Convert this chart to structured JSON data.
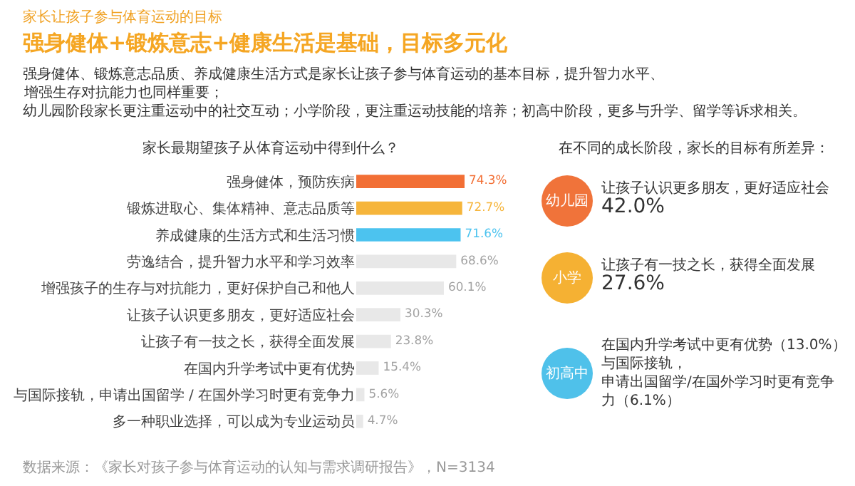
{
  "chart_data": [
    {
      "type": "other",
      "subtitle": "家长让孩子参与体育运动的目标",
      "title": "强身健体+锻炼意志+健康生活是基础，目标多元化",
      "annotations": [
        "强身健体、锻炼意志品质、养成健康生活方式是家长让孩子参与体育运动的基本目标，提升智力水平、增强生存对抗能力也同样重要；",
        "幼儿园阶段家长更注重运动中的社交互动；小学阶段，更注重运动技能的培养；初高中阶段，更多与升学、留学等诉求相关。"
      ]
    },
    {
      "type": "bar",
      "orientation": "horizontal",
      "title": "家长最期望孩子从体育运动中得到什么？",
      "categories": [
        "强身健体，预防疾病",
        "锻炼进取心、集体精神、意志品质等",
        "养成健康的生活方式和生活习惯",
        "劳逸结合，提升智力水平和学习效率",
        "增强孩子的生存与对抗能力，更好保护自己和他人",
        "让孩子认识更多朋友，更好适应社会",
        "让孩子有一技之长，获得全面发展",
        "在国内升学考试中更有优势",
        "与国际接轨，申请出国留学 / 在国外学习时更有竞争力",
        "多一种职业选择，可以成为专业运动员"
      ],
      "values": [
        74.3,
        72.7,
        71.6,
        68.6,
        60.1,
        30.3,
        23.8,
        15.4,
        5.6,
        4.7
      ],
      "value_labels": [
        "74.3%",
        "72.7%",
        "71.6%",
        "68.6%",
        "60.1%",
        "30.3%",
        "23.8%",
        "15.4%",
        "5.6%",
        "4.7%"
      ],
      "colors": [
        "#f26f35",
        "#f6b53b",
        "#4cc3ef",
        "#e8e8e8",
        "#e8e8e8",
        "#e8e8e8",
        "#e8e8e8",
        "#e8e8e8",
        "#e8e8e8",
        "#e8e8e8"
      ],
      "tick_labels": "y",
      "annotations": [
        "数据来源：《家长对孩子参与体育运动的认知与需求调研报告》，N=3134"
      ]
    },
    {
      "type": "other",
      "title": "在不同的成长阶段，家长的目标有所差异：",
      "categories": [
        "幼儿园",
        "小学",
        "初高中"
      ],
      "colors": [
        "#f0733a",
        "#f5b133",
        "#4fc1ea"
      ],
      "annotations": [
        "让孩子认识更多朋友，更好适应社会",
        "42.0%",
        "让孩子有一技之长，获得全面发展",
        "27.6%",
        "在国内升学考试中更有优势（13.0%）",
        "与国际接轨，",
        "申请出国留学/在国外学习时更有竞争力（6.1%）"
      ]
    }
  ]
}
